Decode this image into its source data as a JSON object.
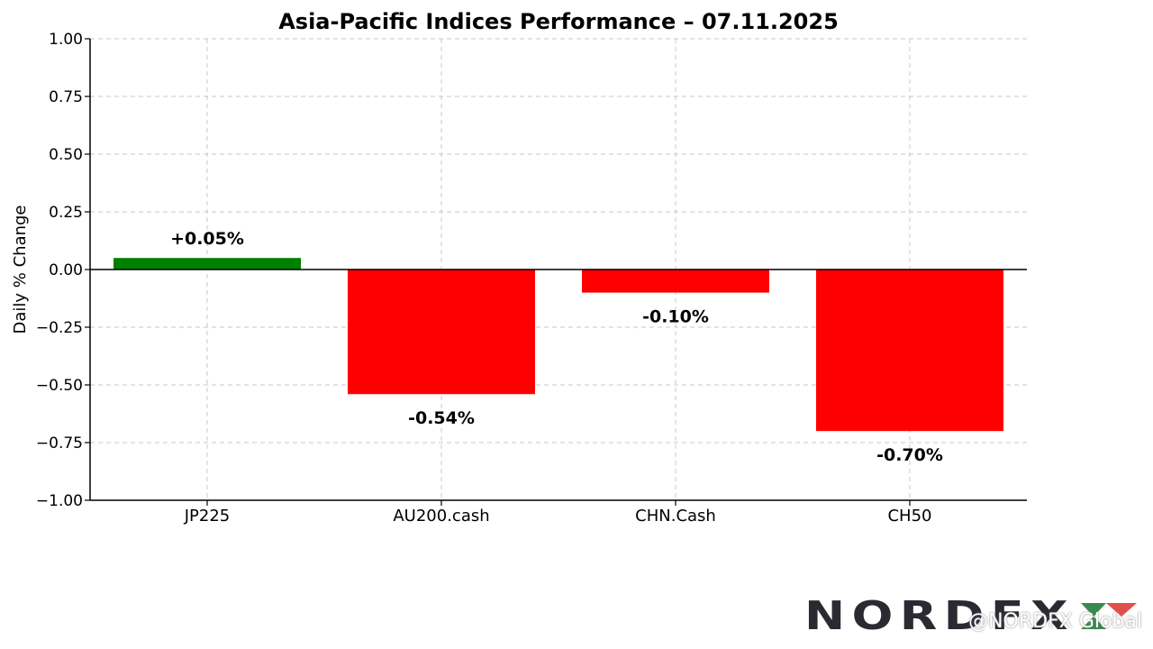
{
  "chart_data": {
    "type": "bar",
    "title": "Asia-Pacific Indices Performance – 07.11.2025",
    "xlabel": "",
    "ylabel": "Daily % Change",
    "categories": [
      "JP225",
      "AU200.cash",
      "CHN.Cash",
      "CH50"
    ],
    "values": [
      0.05,
      -0.54,
      -0.1,
      -0.7
    ],
    "data_labels": [
      "+0.05%",
      "-0.54%",
      "-0.10%",
      "-0.70%"
    ],
    "bar_colors": [
      "#008000",
      "#ff0000",
      "#ff0000",
      "#ff0000"
    ],
    "ylim": [
      -1.0,
      1.0
    ],
    "yticks": [
      1.0,
      0.75,
      0.5,
      0.25,
      0.0,
      -0.25,
      -0.5,
      -0.75,
      -1.0
    ],
    "ytick_labels": [
      "1.00",
      "0.75",
      "0.50",
      "0.25",
      "0.00",
      "−0.25",
      "−0.50",
      "−0.75",
      "−1.00"
    ],
    "grid": true,
    "zero_line": true
  },
  "branding": {
    "logo_text": "NORDFX",
    "watermark": "@NORDFX Global",
    "colors": {
      "logo_dark": "#2b2a33",
      "logo_green": "#3a8a4f",
      "logo_red": "#e0504a"
    }
  }
}
